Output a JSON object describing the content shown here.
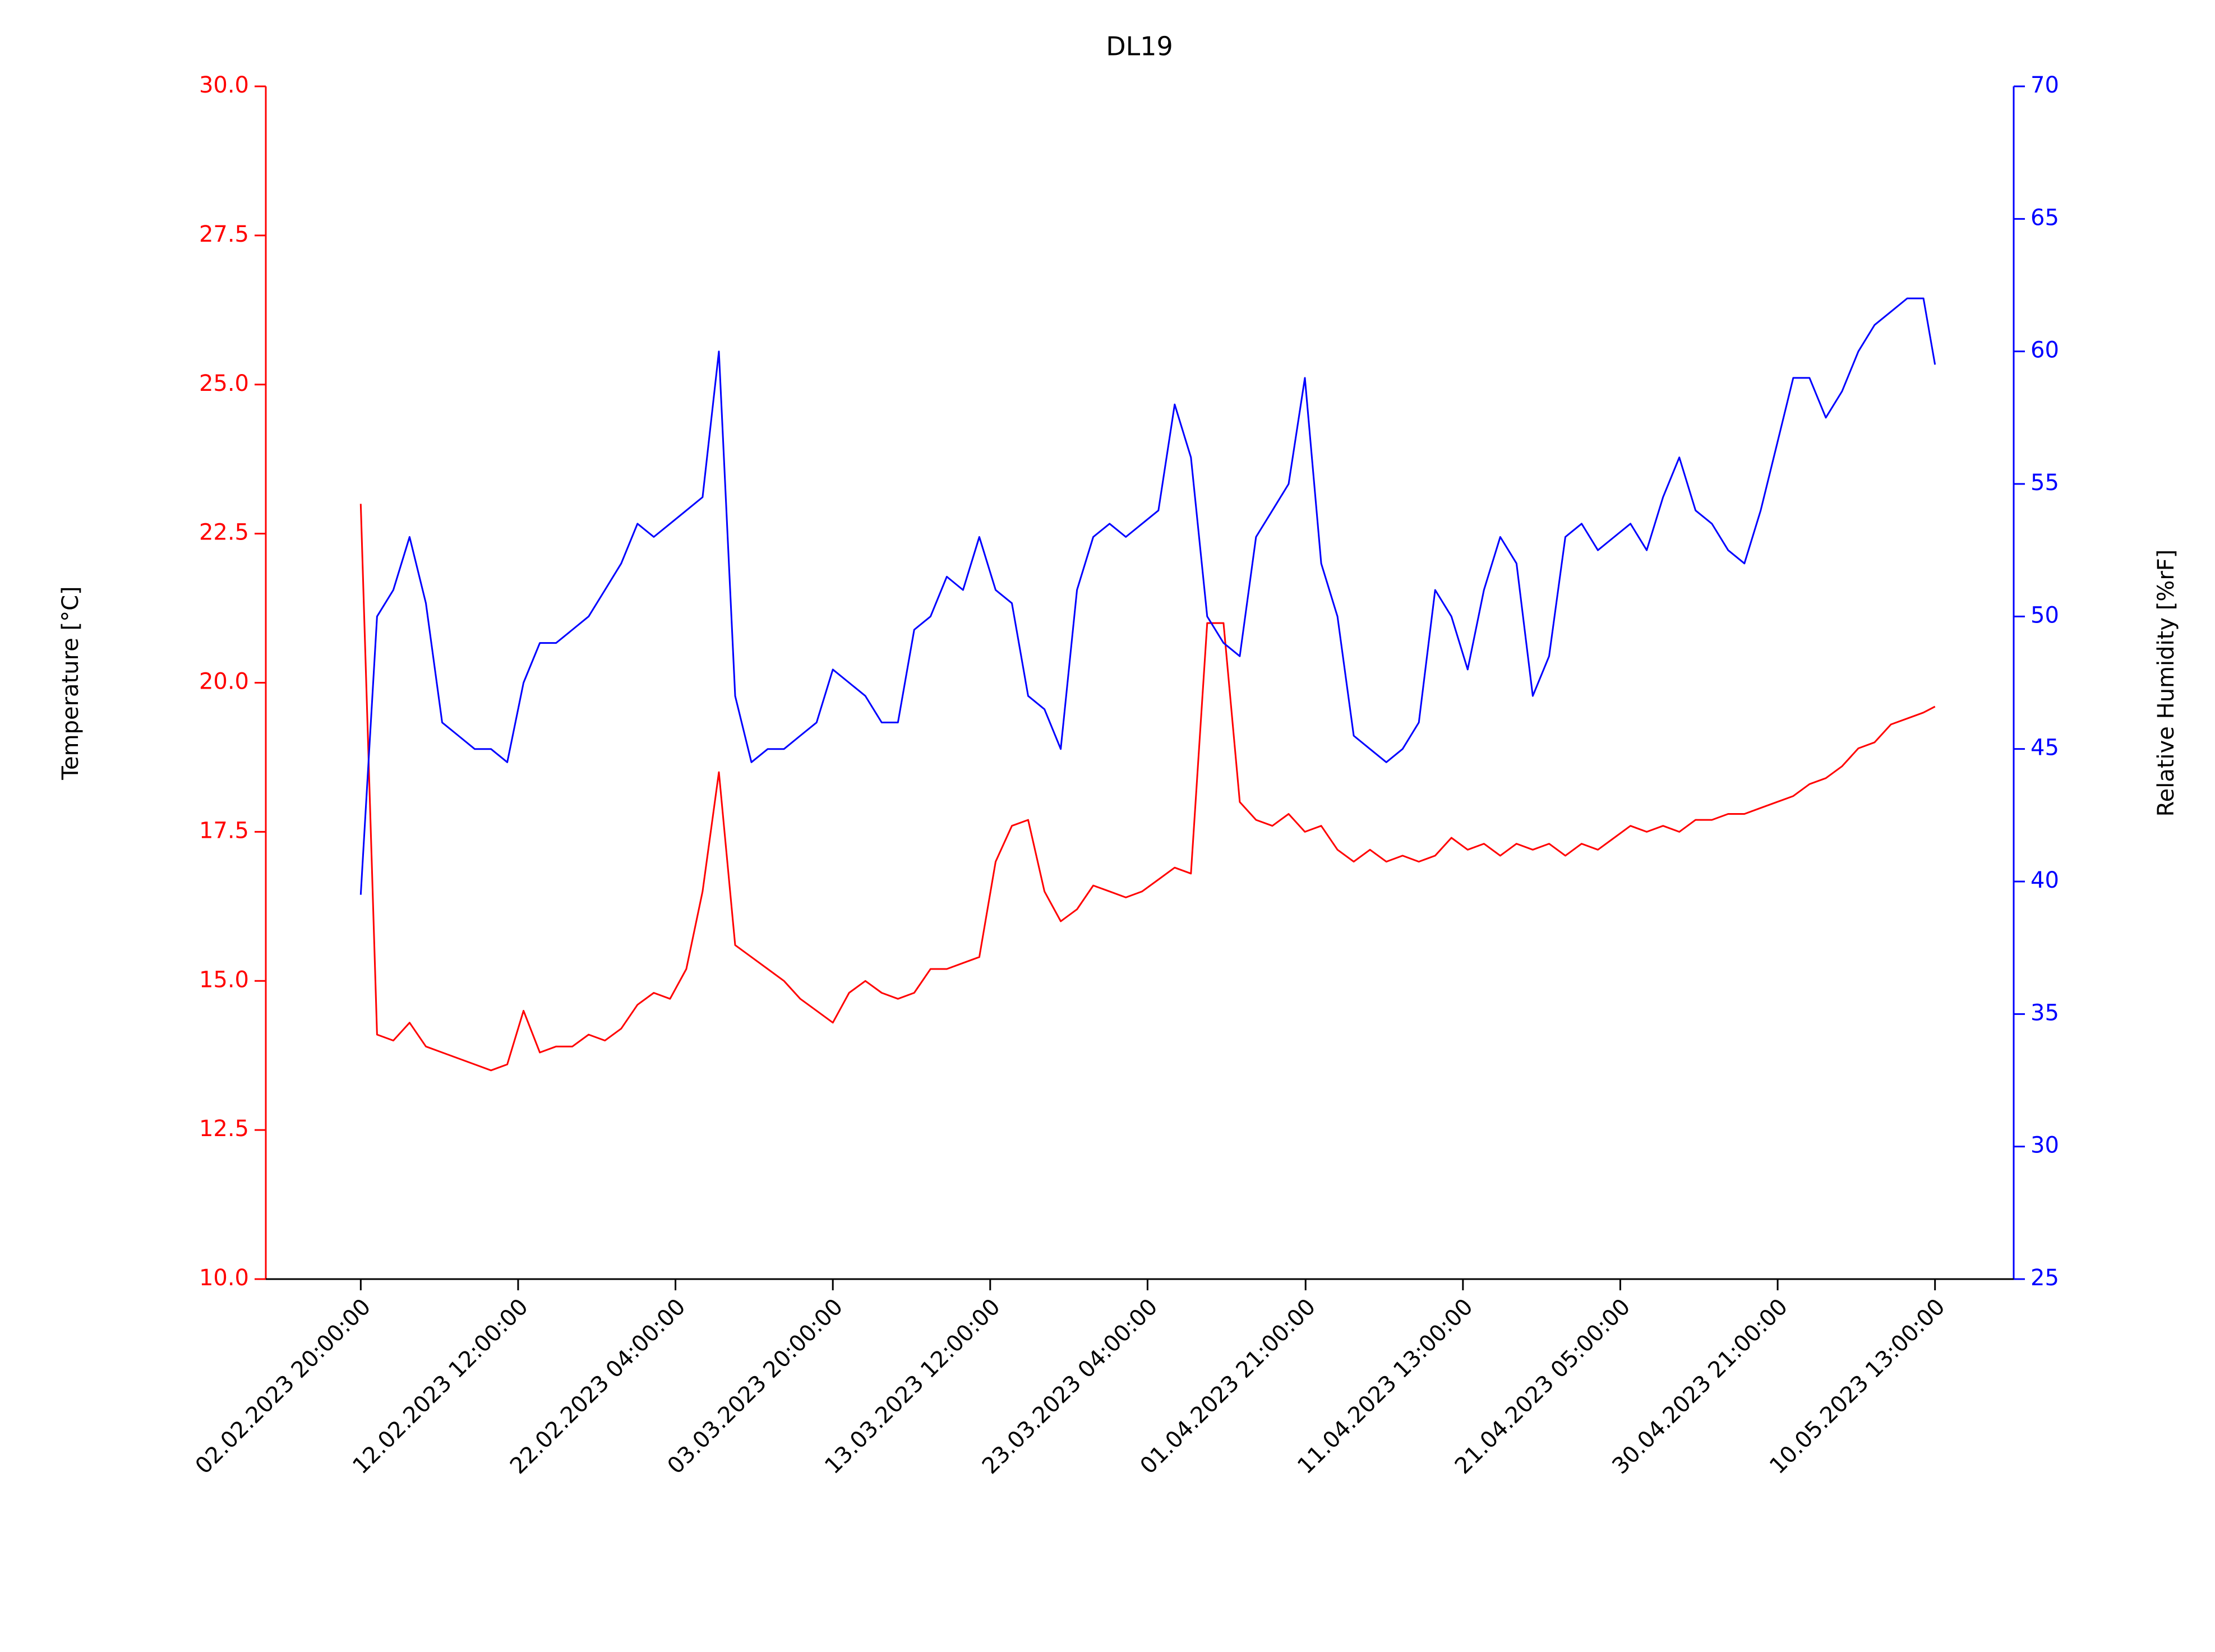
{
  "chart_data": {
    "type": "line",
    "title": "DL19",
    "ylabel": "Temperature [°C]",
    "y2label": "Relative Humidity [%rF]",
    "x": [
      "02.02.2023 20:00:00",
      "03.02.2023 20:00:00",
      "04.02.2023 20:00:00",
      "05.02.2023 20:00:00",
      "06.02.2023 20:00:00",
      "07.02.2023 20:00:00",
      "08.02.2023 20:00:00",
      "09.02.2023 20:00:00",
      "10.02.2023 20:00:00",
      "11.02.2023 20:00:00",
      "12.02.2023 20:00:00",
      "13.02.2023 20:00:00",
      "14.02.2023 20:00:00",
      "15.02.2023 20:00:00",
      "16.02.2023 20:00:00",
      "17.02.2023 20:00:00",
      "18.02.2023 20:00:00",
      "19.02.2023 20:00:00",
      "20.02.2023 20:00:00",
      "21.02.2023 20:00:00",
      "22.02.2023 20:00:00",
      "23.02.2023 20:00:00",
      "24.02.2023 20:00:00",
      "25.02.2023 20:00:00",
      "26.02.2023 20:00:00",
      "27.02.2023 20:00:00",
      "28.02.2023 20:00:00",
      "01.03.2023 20:00:00",
      "02.03.2023 20:00:00",
      "03.03.2023 20:00:00",
      "04.03.2023 20:00:00",
      "05.03.2023 20:00:00",
      "06.03.2023 20:00:00",
      "07.03.2023 20:00:00",
      "08.03.2023 20:00:00",
      "09.03.2023 20:00:00",
      "10.03.2023 20:00:00",
      "11.03.2023 20:00:00",
      "12.03.2023 20:00:00",
      "13.03.2023 20:00:00",
      "14.03.2023 20:00:00",
      "15.03.2023 20:00:00",
      "16.03.2023 20:00:00",
      "17.03.2023 20:00:00",
      "18.03.2023 20:00:00",
      "19.03.2023 20:00:00",
      "20.03.2023 20:00:00",
      "21.03.2023 20:00:00",
      "22.03.2023 20:00:00",
      "23.03.2023 20:00:00",
      "24.03.2023 20:00:00",
      "25.03.2023 20:00:00",
      "26.03.2023 20:00:00",
      "27.03.2023 20:00:00",
      "28.03.2023 20:00:00",
      "29.03.2023 20:00:00",
      "30.03.2023 20:00:00",
      "31.03.2023 20:00:00",
      "01.04.2023 20:00:00",
      "02.04.2023 20:00:00",
      "03.04.2023 20:00:00",
      "04.04.2023 20:00:00",
      "05.04.2023 20:00:00",
      "06.04.2023 20:00:00",
      "07.04.2023 20:00:00",
      "08.04.2023 20:00:00",
      "09.04.2023 20:00:00",
      "10.04.2023 20:00:00",
      "11.04.2023 20:00:00",
      "12.04.2023 20:00:00",
      "13.04.2023 20:00:00",
      "14.04.2023 20:00:00",
      "15.04.2023 20:00:00",
      "16.04.2023 20:00:00",
      "17.04.2023 20:00:00",
      "18.04.2023 20:00:00",
      "19.04.2023 20:00:00",
      "20.04.2023 20:00:00",
      "21.04.2023 20:00:00",
      "22.04.2023 20:00:00",
      "23.04.2023 20:00:00",
      "24.04.2023 20:00:00",
      "25.04.2023 20:00:00",
      "26.04.2023 20:00:00",
      "27.04.2023 20:00:00",
      "28.04.2023 20:00:00",
      "29.04.2023 20:00:00",
      "30.04.2023 20:00:00",
      "01.05.2023 20:00:00",
      "02.05.2023 20:00:00",
      "03.05.2023 20:00:00",
      "04.05.2023 20:00:00",
      "05.05.2023 20:00:00",
      "06.05.2023 20:00:00",
      "07.05.2023 20:00:00",
      "08.05.2023 20:00:00",
      "09.05.2023 20:00:00",
      "10.05.2023 13:00:00"
    ],
    "series": [
      {
        "color": "#ff0000",
        "axis": "y",
        "values": [
          23.0,
          14.1,
          14.0,
          14.3,
          13.9,
          13.8,
          13.7,
          13.6,
          13.5,
          13.6,
          14.5,
          13.8,
          13.9,
          13.9,
          14.1,
          14.0,
          14.2,
          14.6,
          14.8,
          14.7,
          15.2,
          16.5,
          18.5,
          15.6,
          15.4,
          15.2,
          15.0,
          14.7,
          14.5,
          14.3,
          14.8,
          15.0,
          14.8,
          14.7,
          14.8,
          15.2,
          15.2,
          15.3,
          15.4,
          17.0,
          17.6,
          17.7,
          16.5,
          16.0,
          16.2,
          16.6,
          16.5,
          16.4,
          16.5,
          16.7,
          16.9,
          16.8,
          21.0,
          21.0,
          18.0,
          17.7,
          17.6,
          17.8,
          17.5,
          17.6,
          17.2,
          17.0,
          17.2,
          17.0,
          17.1,
          17.0,
          17.1,
          17.4,
          17.2,
          17.3,
          17.1,
          17.3,
          17.2,
          17.3,
          17.1,
          17.3,
          17.2,
          17.4,
          17.6,
          17.5,
          17.6,
          17.5,
          17.7,
          17.7,
          17.8,
          17.8,
          17.9,
          18.0,
          18.1,
          18.3,
          18.4,
          18.6,
          18.9,
          19.0,
          19.3,
          19.4,
          19.5,
          19.6
        ]
      },
      {
        "color": "#0000ff",
        "axis": "y2",
        "values": [
          39.5,
          50.0,
          51.0,
          53.0,
          50.5,
          46.0,
          45.5,
          45.0,
          45.0,
          44.5,
          47.5,
          49.0,
          49.0,
          49.5,
          50.0,
          51.0,
          52.0,
          53.5,
          53.0,
          53.5,
          54.0,
          54.5,
          60.0,
          47.0,
          44.5,
          45.0,
          45.0,
          45.5,
          46.0,
          48.0,
          47.5,
          47.0,
          46.0,
          46.0,
          49.5,
          50.0,
          51.5,
          51.0,
          53.0,
          51.0,
          50.5,
          47.0,
          46.5,
          45.0,
          51.0,
          53.0,
          53.5,
          53.0,
          53.5,
          54.0,
          58.0,
          56.0,
          50.0,
          49.0,
          48.5,
          53.0,
          54.0,
          55.0,
          59.0,
          52.0,
          50.0,
          45.5,
          45.0,
          44.5,
          45.0,
          46.0,
          51.0,
          50.0,
          48.0,
          51.0,
          53.0,
          52.0,
          47.0,
          48.5,
          53.0,
          53.5,
          52.5,
          53.0,
          53.5,
          52.5,
          54.5,
          56.0,
          54.0,
          53.5,
          52.5,
          52.0,
          54.0,
          56.5,
          59.0,
          59.0,
          57.5,
          58.5,
          60.0,
          61.0,
          61.5,
          62.0,
          62.0,
          59.5
        ]
      }
    ],
    "xlim": [
      "28.01.2023 00:00:00",
      "15.05.2023 09:00:00"
    ],
    "xticks": [
      "02.02.2023 20:00:00",
      "12.02.2023 12:00:00",
      "22.02.2023 04:00:00",
      "03.03.2023 20:00:00",
      "13.03.2023 12:00:00",
      "23.03.2023 04:00:00",
      "01.04.2023 21:00:00",
      "11.04.2023 13:00:00",
      "21.04.2023 05:00:00",
      "30.04.2023 21:00:00",
      "10.05.2023 13:00:00"
    ],
    "ylim": [
      10,
      30
    ],
    "yticks": [
      {
        "value": 10,
        "label": "10.0"
      },
      12.5,
      {
        "value": 15,
        "label": "15.0"
      },
      17.5,
      {
        "value": 20,
        "label": "20.0"
      },
      22.5,
      {
        "value": 25,
        "label": "25.0"
      },
      27.5,
      {
        "value": 30,
        "label": "30.0"
      }
    ],
    "y2lim": [
      25,
      70
    ],
    "y2ticks": [
      25,
      30,
      35,
      40,
      45,
      50,
      55,
      60,
      65,
      70
    ],
    "grid": false
  }
}
